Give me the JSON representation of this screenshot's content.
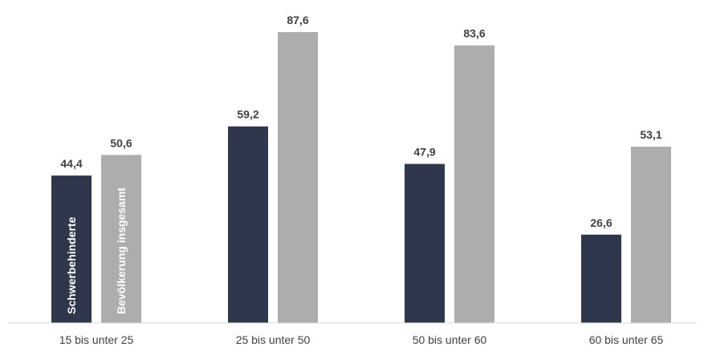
{
  "chart_data": {
    "type": "bar",
    "categories": [
      "15 bis unter 25",
      "25 bis unter 50",
      "50 bis unter 60",
      "60 bis unter 65"
    ],
    "series": [
      {
        "name": "Schwerbehinderte",
        "values": [
          44.4,
          59.2,
          47.9,
          26.6
        ],
        "labels": [
          "44,4",
          "59,2",
          "47,9",
          "26,6"
        ],
        "color": "#2f374d"
      },
      {
        "name": "Bevölkerung insgesamt",
        "values": [
          50.6,
          87.6,
          83.6,
          53.1
        ],
        "labels": [
          "50,6",
          "87,6",
          "83,6",
          "53,1"
        ],
        "color": "#adadad"
      }
    ],
    "title": "",
    "xlabel": "",
    "ylabel": "",
    "ylim": [
      0,
      100
    ],
    "grid": false,
    "legend": "inside-first-bars"
  }
}
